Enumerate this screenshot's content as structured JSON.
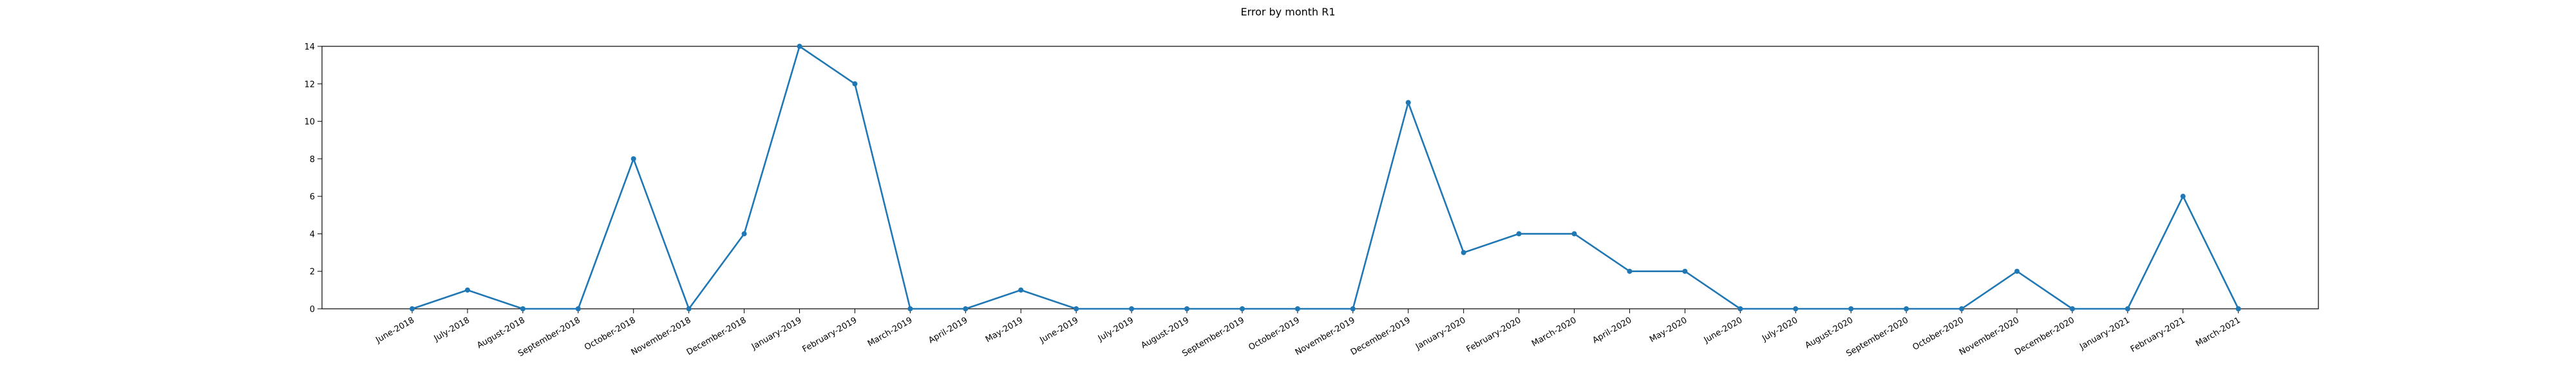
{
  "chart_data": {
    "type": "line",
    "title": "Error by month R1",
    "xlabel": "",
    "ylabel": "",
    "ylim": [
      0,
      14
    ],
    "yticks": [
      0,
      2,
      4,
      6,
      8,
      10,
      12,
      14
    ],
    "grid": false,
    "legend": "none",
    "colors": {
      "line": "#1f77b4",
      "axes": "#000000"
    },
    "categories": [
      "June-2018",
      "July-2018",
      "August-2018",
      "September-2018",
      "October-2018",
      "November-2018",
      "December-2018",
      "January-2019",
      "February-2019",
      "March-2019",
      "April-2019",
      "May-2019",
      "June-2019",
      "July-2019",
      "August-2019",
      "September-2019",
      "October-2019",
      "November-2019",
      "December-2019",
      "January-2020",
      "February-2020",
      "March-2020",
      "April-2020",
      "May-2020",
      "June-2020",
      "July-2020",
      "August-2020",
      "September-2020",
      "October-2020",
      "November-2020",
      "December-2020",
      "January-2021",
      "February-2021",
      "March-2021"
    ],
    "series": [
      {
        "values": [
          0,
          1,
          0,
          0,
          8,
          0,
          4,
          14,
          12,
          0,
          0,
          1,
          0,
          0,
          0,
          0,
          0,
          0,
          11,
          3,
          4,
          4,
          2,
          2,
          0,
          0,
          0,
          0,
          0,
          2,
          0,
          0,
          6,
          0
        ]
      }
    ]
  }
}
